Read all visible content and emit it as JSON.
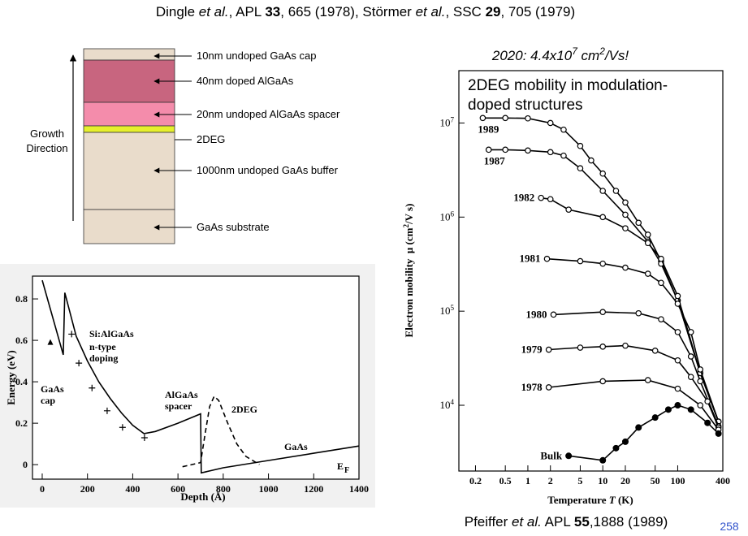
{
  "header": {
    "citation": [
      "Dingle ",
      "et al.",
      ", APL ",
      "33",
      ", 665 (1978), Störmer ",
      "et al.",
      ", SSC ",
      "29",
      ", 705 (1979)"
    ]
  },
  "layer_diagram": {
    "axis_label": [
      "Growth",
      "Direction"
    ],
    "layers": [
      {
        "label": "10nm undoped GaAs cap",
        "color": "#e9dccb"
      },
      {
        "label": "40nm doped AlGaAs",
        "color": "#c8657f"
      },
      {
        "label": "20nm undoped AlGaAs spacer",
        "color": "#f48cab"
      },
      {
        "label": "2DEG",
        "color": "#e6ef2c"
      },
      {
        "label": "1000nm undoped GaAs buffer",
        "color": "#e9dccb"
      },
      {
        "label": "GaAs substrate",
        "color": "#e9dccb"
      }
    ]
  },
  "chart_data": [
    {
      "type": "line",
      "xlabel": "Depth (Å)",
      "ylabel": "Energy (eV)",
      "xlim": [
        -43,
        1400
      ],
      "ylim": [
        -0.07,
        0.91
      ],
      "xticks": [
        0,
        200,
        400,
        600,
        800,
        1000,
        1200,
        1400
      ],
      "yticks": [
        0,
        0.2,
        0.4,
        0.6,
        0.8
      ],
      "grid": false,
      "series": [
        {
          "line": "solid",
          "color": "#000000",
          "x": [
            0,
            93,
            100,
            150,
            200,
            250,
            300,
            350,
            400,
            450,
            500,
            600,
            700,
            703,
            800,
            1000,
            1200,
            1400
          ],
          "values": [
            0.89,
            0.53,
            0.83,
            0.62,
            0.5,
            0.4,
            0.32,
            0.25,
            0.19,
            0.15,
            0.16,
            0.2,
            0.245,
            -0.04,
            -0.015,
            0.02,
            0.055,
            0.09
          ]
        },
        {
          "line": "dashed",
          "color": "#000000",
          "x": [
            620,
            700,
            720,
            740,
            760,
            780,
            820,
            860,
            900,
            960
          ],
          "values": [
            -0.01,
            0.01,
            0.15,
            0.28,
            0.33,
            0.31,
            0.2,
            0.1,
            0.04,
            0.0
          ]
        },
        {
          "line": "none",
          "marker": "plus",
          "color": "#000000",
          "x": [
            130,
            162,
            220,
            287,
            355,
            452
          ],
          "values": [
            0.63,
            0.49,
            0.37,
            0.26,
            0.18,
            0.13
          ]
        },
        {
          "line": "none",
          "marker": "triangle",
          "color": "#000000",
          "x": [
            36
          ],
          "values": [
            0.59
          ]
        }
      ],
      "annotations": [
        "Si:AlGaAs",
        "n-type",
        "doping",
        "GaAs",
        "cap",
        "AlGaAs",
        "spacer",
        "2DEG",
        "GaAs",
        "E",
        "F"
      ]
    },
    {
      "type": "line",
      "title": [
        "2020: 4.4x10",
        "7",
        " cm",
        "2",
        "/Vs!"
      ],
      "annotations": [
        "2DEG mobility in modulation-",
        "doped structures"
      ],
      "xlabel": [
        "Temperature ",
        "T",
        " (K)"
      ],
      "ylabel": [
        "Electron mobility  μ (cm",
        "2",
        "/V s)"
      ],
      "xscale": "log",
      "yscale": "log",
      "xlim": [
        0.12,
        400
      ],
      "ylim": [
        2000,
        36000000
      ],
      "xticks": [
        0.2,
        0.5,
        1,
        2,
        5,
        10,
        20,
        50,
        100,
        400
      ],
      "yticks": [
        {
          "value": 10000,
          "label": "10",
          "exponent": "4"
        },
        {
          "value": 100000,
          "label": "10",
          "exponent": "5"
        },
        {
          "value": 1000000,
          "label": "10",
          "exponent": "6"
        },
        {
          "value": 10000000,
          "label": "10",
          "exponent": "7"
        }
      ],
      "grid": false,
      "series": [
        {
          "name": "1989",
          "line": "solid",
          "marker": "circle-open",
          "color": "#000000",
          "x": [
            0.25,
            0.5,
            1,
            2,
            3,
            5,
            7,
            10,
            15,
            20,
            30,
            40,
            60,
            100,
            200,
            350
          ],
          "values": [
            11300000,
            11300000,
            11200000,
            10000000,
            8500000,
            5700000,
            4000000,
            2900000,
            1900000,
            1430000,
            870000,
            650000,
            340000,
            130000,
            22000,
            6700
          ]
        },
        {
          "name": "1987",
          "line": "solid",
          "marker": "circle-open",
          "color": "#000000",
          "x": [
            0.3,
            0.5,
            1,
            2,
            3,
            5,
            10,
            20,
            40,
            60,
            100,
            200,
            350
          ],
          "values": [
            5200000,
            5200000,
            5100000,
            4900000,
            4500000,
            3300000,
            1900000,
            1060000,
            550000,
            320000,
            130000,
            22000,
            6700
          ]
        },
        {
          "name": "1982",
          "line": "solid",
          "marker": "circle-open",
          "color": "#000000",
          "x": [
            1.5,
            2,
            3.5,
            10,
            20,
            40,
            60,
            100,
            200,
            350
          ],
          "values": [
            1600000,
            1550000,
            1200000,
            1000000,
            760000,
            530000,
            360000,
            145000,
            22000,
            6700
          ]
        },
        {
          "name": "1981",
          "line": "solid",
          "marker": "circle-open",
          "color": "#000000",
          "x": [
            1.8,
            5,
            10,
            20,
            40,
            60,
            100,
            150,
            200,
            350
          ],
          "values": [
            360000,
            340000,
            320000,
            290000,
            250000,
            200000,
            120000,
            60000,
            24000,
            6700
          ]
        },
        {
          "name": "1980",
          "line": "solid",
          "marker": "circle-open",
          "color": "#000000",
          "x": [
            2.2,
            10,
            30,
            60,
            100,
            150,
            200,
            350
          ],
          "values": [
            92000,
            98000,
            95000,
            82000,
            60000,
            33000,
            18000,
            6000
          ]
        },
        {
          "name": "1979",
          "line": "solid",
          "marker": "circle-open",
          "color": "#000000",
          "x": [
            1.9,
            5,
            10,
            20,
            50,
            100,
            150,
            250,
            350
          ],
          "values": [
            39000,
            41000,
            42000,
            43000,
            38000,
            30000,
            20000,
            11000,
            5800
          ]
        },
        {
          "name": "1978",
          "line": "solid",
          "marker": "circle-open",
          "color": "#000000",
          "x": [
            1.9,
            10,
            40,
            100,
            200,
            350
          ],
          "values": [
            15500,
            18000,
            18500,
            15000,
            10000,
            5500
          ]
        },
        {
          "name": "Bulk",
          "line": "solid",
          "marker": "circle-filled",
          "color": "#000000",
          "x": [
            3.5,
            10,
            15,
            20,
            30,
            50,
            75,
            100,
            150,
            250,
            350
          ],
          "values": [
            2900,
            2600,
            3500,
            4100,
            5800,
            7400,
            9000,
            10000,
            9000,
            6500,
            5000
          ]
        }
      ]
    }
  ],
  "footer": {
    "citation": [
      "Pfeiffer ",
      "et al.",
      " APL ",
      "55",
      ",1888 (1989)"
    ],
    "page_number": "258"
  }
}
